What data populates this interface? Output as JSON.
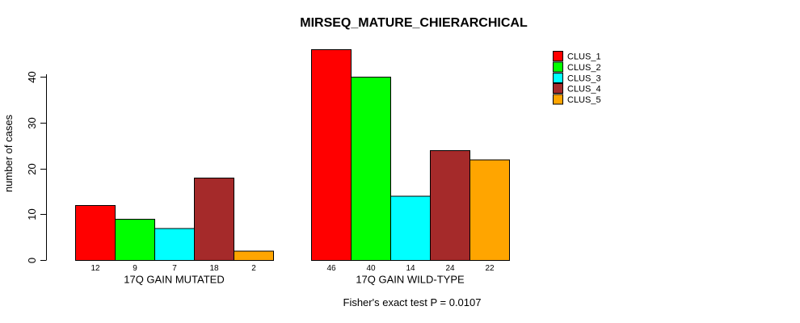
{
  "chart_data": {
    "type": "bar",
    "title": "MIRSEQ_MATURE_CHIERARCHICAL",
    "ylabel": "number of cases",
    "xlabel": "",
    "annotation": "Fisher's exact test P = 0.0107",
    "groups": [
      "17Q GAIN MUTATED",
      "17Q GAIN WILD-TYPE"
    ],
    "series": [
      {
        "name": "CLUS_1",
        "color": "#FF0000",
        "values": [
          12,
          46
        ]
      },
      {
        "name": "CLUS_2",
        "color": "#00FF00",
        "values": [
          9,
          40
        ]
      },
      {
        "name": "CLUS_3",
        "color": "#00FFFF",
        "values": [
          7,
          14
        ]
      },
      {
        "name": "CLUS_4",
        "color": "#A52A2A",
        "values": [
          18,
          24
        ]
      },
      {
        "name": "CLUS_5",
        "color": "#FFA500",
        "values": [
          2,
          22
        ]
      }
    ],
    "yticks": [
      0,
      10,
      20,
      30,
      40
    ],
    "ylim": [
      0,
      46
    ],
    "bar_value_labels": true,
    "grid": false,
    "legend_position": "top-right",
    "bar_border_color": "#000000",
    "axis_color": "#000000",
    "background_color": "#FFFFFF"
  }
}
